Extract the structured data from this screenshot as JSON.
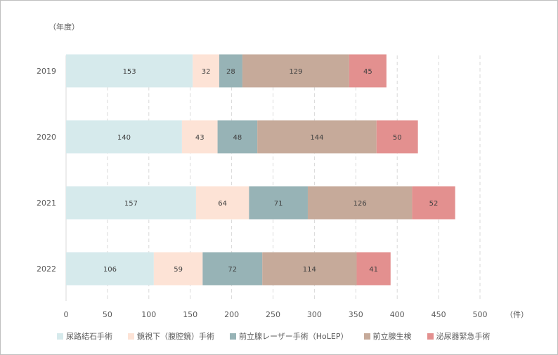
{
  "chart_data": {
    "type": "bar",
    "orientation": "horizontal",
    "stacked": true,
    "ylabel": "（年度）",
    "xunit": "（件）",
    "categories": [
      "2019",
      "2020",
      "2021",
      "2022"
    ],
    "series": [
      {
        "name": "尿路結石手術",
        "color": "#d6eaec",
        "values": [
          153,
          140,
          157,
          106
        ]
      },
      {
        "name": "鏡視下（腹腔鏡）手術",
        "color": "#fde3d6",
        "values": [
          32,
          43,
          64,
          59
        ]
      },
      {
        "name": "前立腺レーザー手術（HoLEP）",
        "color": "#97b3b6",
        "values": [
          28,
          48,
          71,
          72
        ]
      },
      {
        "name": "前立腺生検",
        "color": "#c6aa9a",
        "values": [
          129,
          144,
          126,
          114
        ]
      },
      {
        "name": "泌尿器緊急手術",
        "color": "#e3908f",
        "values": [
          45,
          50,
          52,
          41
        ]
      }
    ],
    "xlim": [
      0,
      500
    ],
    "xticks": [
      0,
      50,
      100,
      150,
      200,
      250,
      300,
      350,
      400,
      450,
      500
    ],
    "grid": "vertical-dashed",
    "legend": "bottom"
  }
}
